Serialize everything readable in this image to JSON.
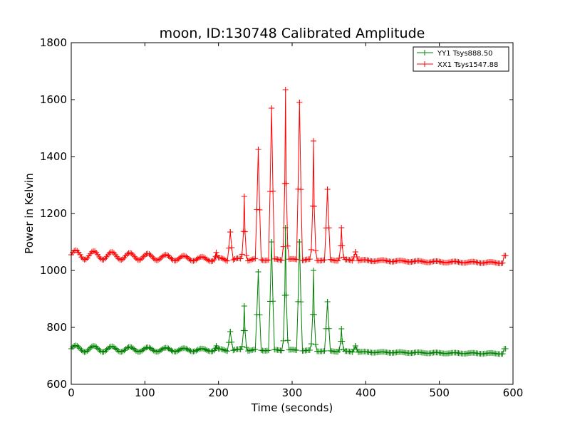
{
  "chart_data": {
    "type": "line",
    "title": "moon, ID:130748 Calibrated Amplitude",
    "xlabel": "Time (seconds)",
    "ylabel": "Power in Kelvin",
    "xlim": [
      0,
      600
    ],
    "ylim": [
      600,
      1800
    ],
    "xticks": [
      0,
      100,
      200,
      300,
      400,
      500,
      600
    ],
    "yticks": [
      600,
      800,
      1000,
      1200,
      1400,
      1600,
      1800
    ],
    "grid": false,
    "legend_position": "top-right",
    "marker": "plus",
    "t_max": 590,
    "peaks": [
      {
        "t": 197,
        "xx": 1063,
        "yy": 735
      },
      {
        "t": 216,
        "xx": 1135,
        "yy": 785
      },
      {
        "t": 235,
        "xx": 1260,
        "yy": 875
      },
      {
        "t": 254,
        "xx": 1425,
        "yy": 995
      },
      {
        "t": 272,
        "xx": 1570,
        "yy": 1100
      },
      {
        "t": 291,
        "xx": 1635,
        "yy": 1150
      },
      {
        "t": 310,
        "xx": 1590,
        "yy": 1100
      },
      {
        "t": 329,
        "xx": 1455,
        "yy": 1000
      },
      {
        "t": 348,
        "xx": 1285,
        "yy": 890
      },
      {
        "t": 367,
        "xx": 1150,
        "yy": 795
      },
      {
        "t": 386,
        "xx": 1065,
        "yy": 735
      }
    ],
    "series": [
      {
        "name": "YY1 Tsys888.50",
        "color": "#008000",
        "baseline": [
          [
            0,
            725
          ],
          [
            100,
            722
          ],
          [
            200,
            720
          ],
          [
            300,
            720
          ],
          [
            400,
            713
          ],
          [
            500,
            710
          ],
          [
            590,
            708
          ]
        ],
        "wobble_amplitude": 12,
        "wobble_decay_end": 320,
        "end_value": 725
      },
      {
        "name": "XX1 Tsys1547.88",
        "color": "#ff0000",
        "baseline": [
          [
            0,
            1055
          ],
          [
            100,
            1048
          ],
          [
            200,
            1038
          ],
          [
            300,
            1038
          ],
          [
            400,
            1035
          ],
          [
            500,
            1030
          ],
          [
            590,
            1027
          ]
        ],
        "wobble_amplitude": 17,
        "wobble_decay_end": 320,
        "end_value": 1052
      }
    ]
  }
}
